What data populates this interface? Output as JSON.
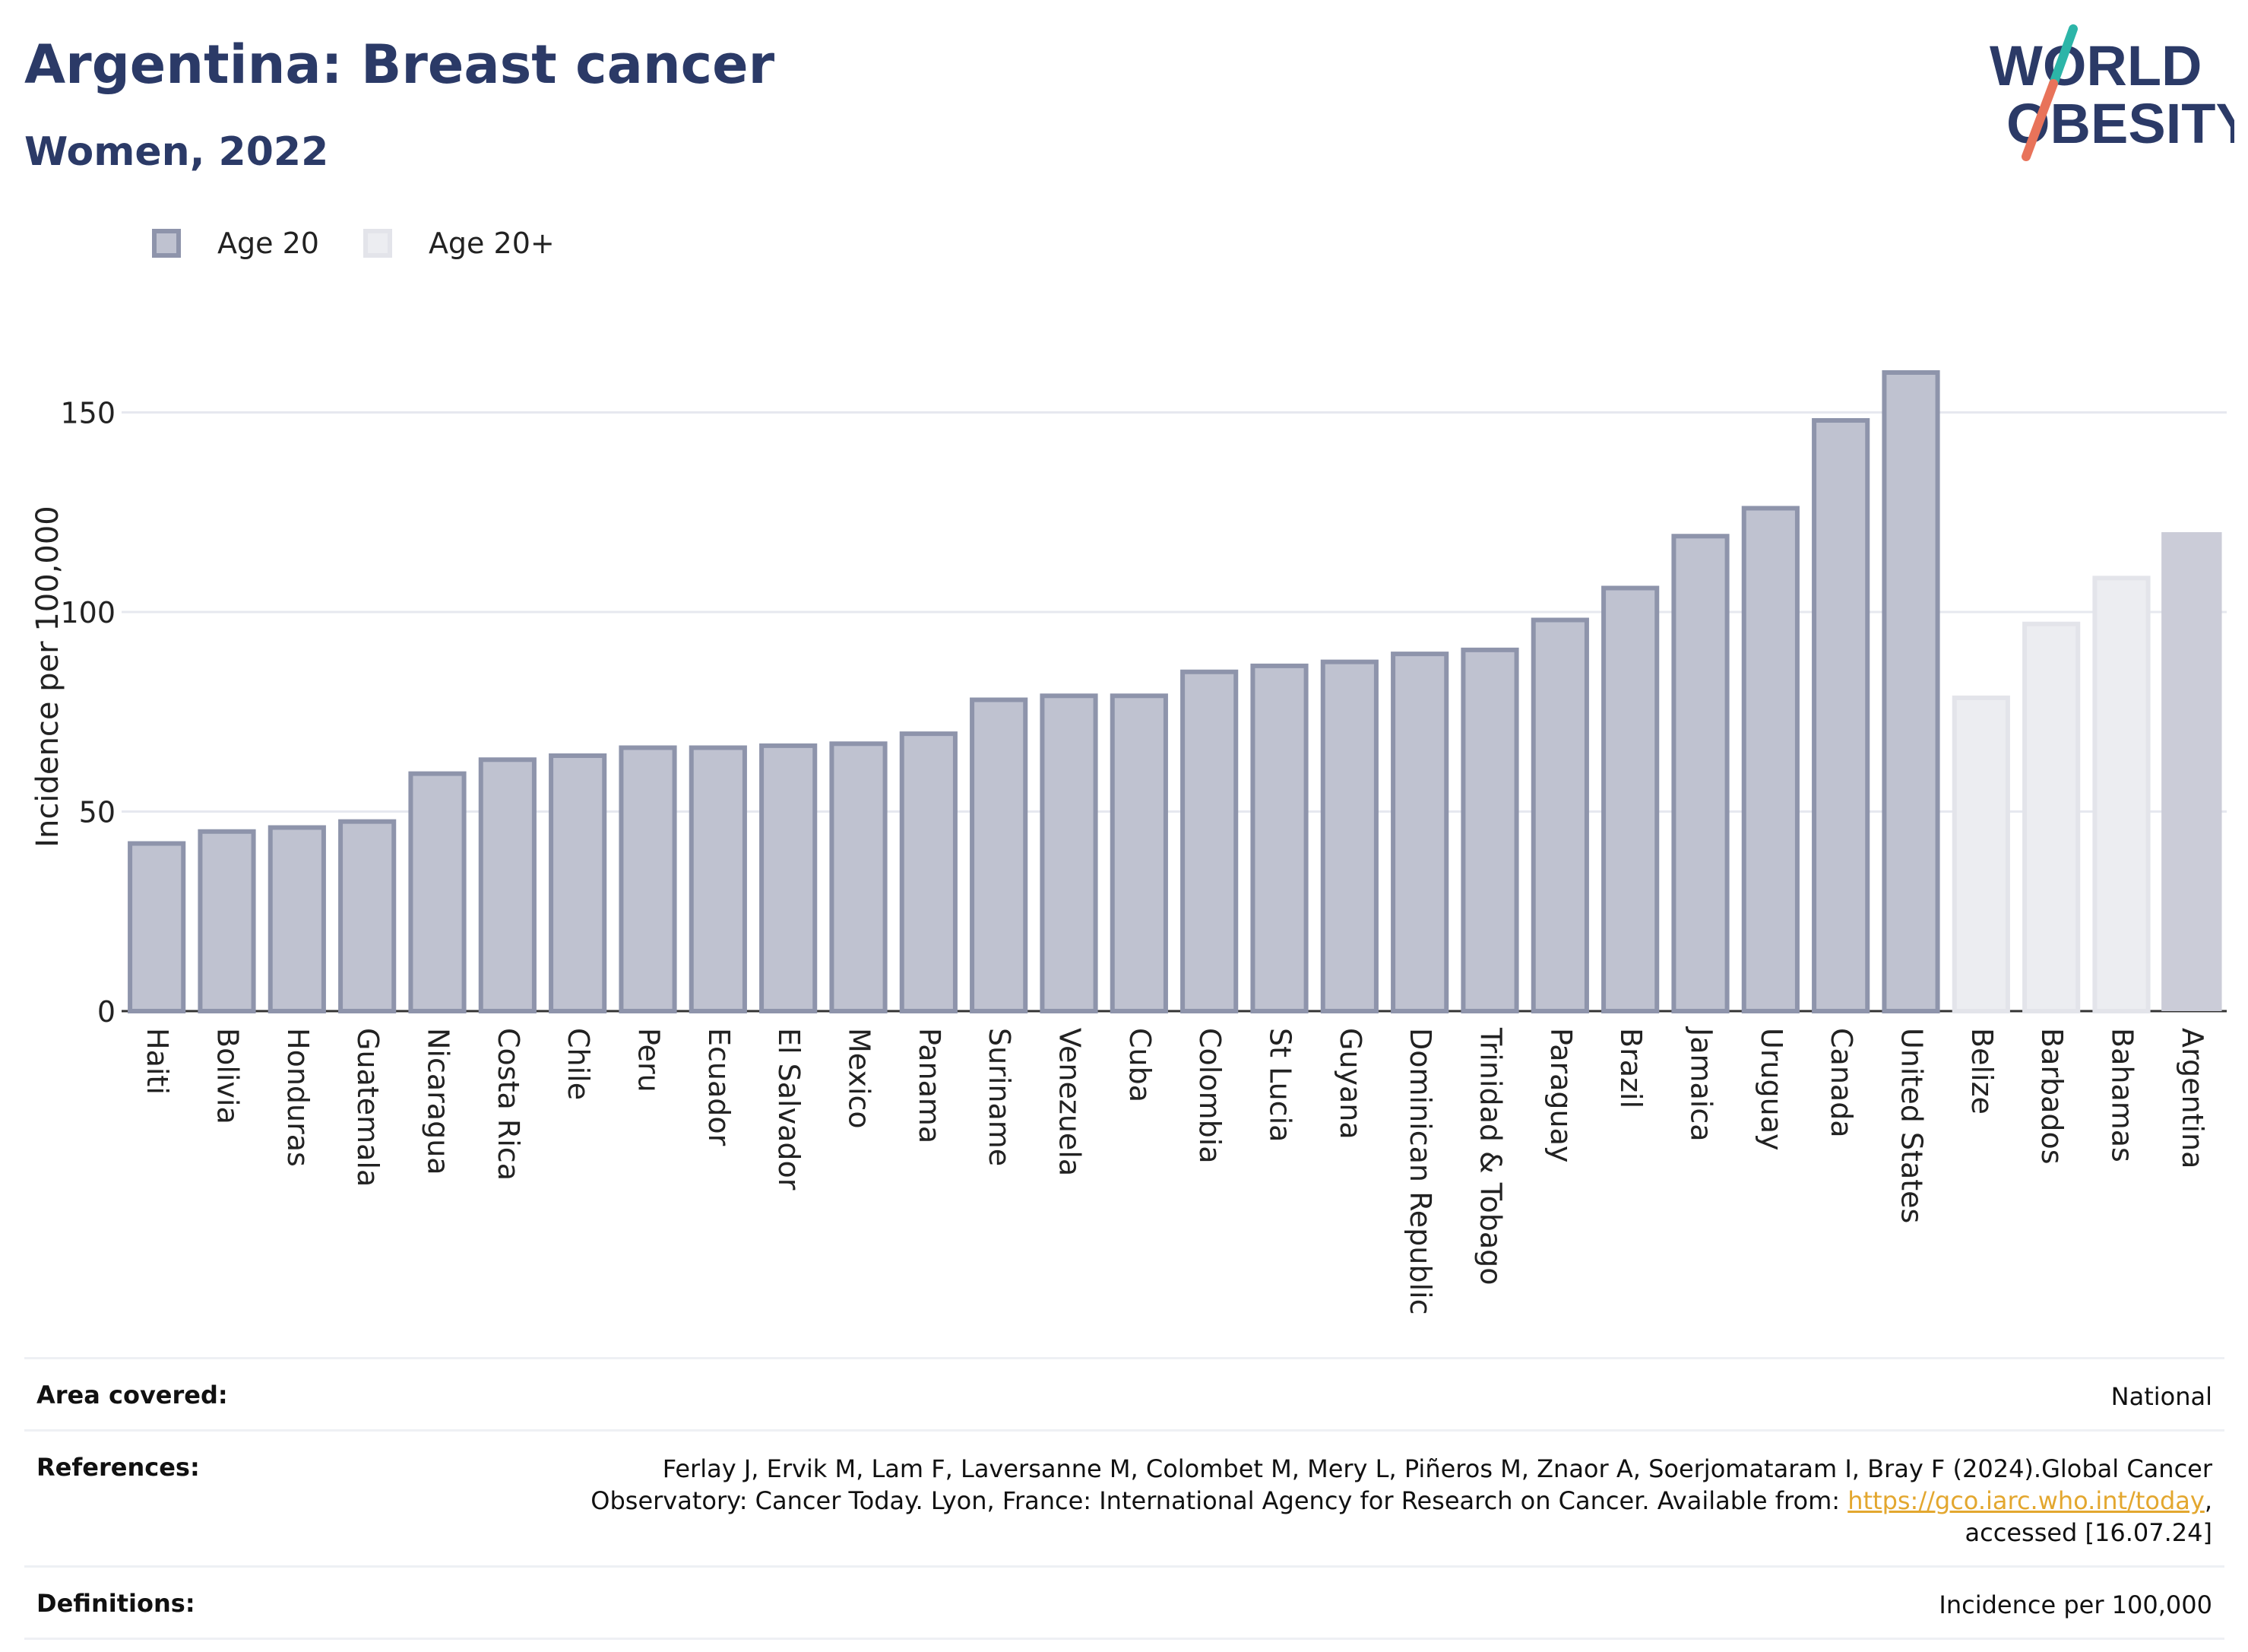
{
  "header": {
    "title": "Argentina: Breast cancer",
    "subtitle": "Women, 2022"
  },
  "logo": {
    "line1": "WORLD",
    "line2": "OBESITY"
  },
  "legend": [
    {
      "label": "Age 20",
      "color": "#bfc2d0",
      "border": "#8e94ab"
    },
    {
      "label": "Age 20+",
      "color": "#ecedf1",
      "border": "#e3e4ea"
    }
  ],
  "chart_data": {
    "type": "bar",
    "ylabel": "Incidence per 100,000",
    "xlabel": "",
    "ylim": [
      0,
      160
    ],
    "yticks": [
      0,
      50,
      100,
      150
    ],
    "grid": true,
    "legend_position": "top-left",
    "categories": [
      "Haiti",
      "Bolivia",
      "Honduras",
      "Guatemala",
      "Nicaragua",
      "Costa Rica",
      "Chile",
      "Peru",
      "Ecuador",
      "El Salvador",
      "Mexico",
      "Panama",
      "Suriname",
      "Venezuela",
      "Cuba",
      "Colombia",
      "St Lucia",
      "Guyana",
      "Dominican Republic",
      "Trinidad & Tobago",
      "Paraguay",
      "Brazil",
      "Jamaica",
      "Uruguay",
      "Canada",
      "United States",
      "Belize",
      "Barbados",
      "Bahamas",
      "Argentina"
    ],
    "values": [
      42,
      45,
      46,
      47.5,
      59.5,
      63,
      64,
      66,
      66,
      66.5,
      67,
      69.5,
      78,
      79,
      79,
      85,
      86.5,
      87.5,
      89.5,
      90.5,
      98,
      106,
      119,
      126,
      148,
      160,
      78.5,
      97,
      108.5,
      120
    ],
    "series_of_bar": [
      "Age 20",
      "Age 20",
      "Age 20",
      "Age 20",
      "Age 20",
      "Age 20",
      "Age 20",
      "Age 20",
      "Age 20",
      "Age 20",
      "Age 20",
      "Age 20",
      "Age 20",
      "Age 20",
      "Age 20",
      "Age 20",
      "Age 20",
      "Age 20",
      "Age 20",
      "Age 20",
      "Age 20",
      "Age 20",
      "Age 20",
      "Age 20",
      "Age 20",
      "Age 20",
      "Age 20+",
      "Age 20+",
      "Age 20+",
      "Age 20+"
    ],
    "highlight": "Argentina",
    "colors": {
      "age20_fill": "#bfc2d0",
      "age20_stroke": "#8e94ab",
      "age20p_fill": "#ecedf1",
      "age20p_stroke": "#e3e4ea",
      "highlight_fill": "#cbccd8",
      "grid": "#e6e8ef",
      "axis": "#333333"
    }
  },
  "info": {
    "area_label": "Area covered:",
    "area_value": "National",
    "ref_label": "References:",
    "ref_text_1": "Ferlay J, Ervik M, Lam F, Laversanne M, Colombet M, Mery L, Piñeros M, Znaor A, Soerjomataram I, Bray F (2024).Global Cancer Observatory: Cancer Today. Lyon, France: International Agency for Research on Cancer. Available from: ",
    "ref_link": "https://gco.iarc.who.int/today",
    "ref_text_2": ", accessed [16.07.24]",
    "def_label": "Definitions:",
    "def_value": "Incidence per 100,000"
  }
}
